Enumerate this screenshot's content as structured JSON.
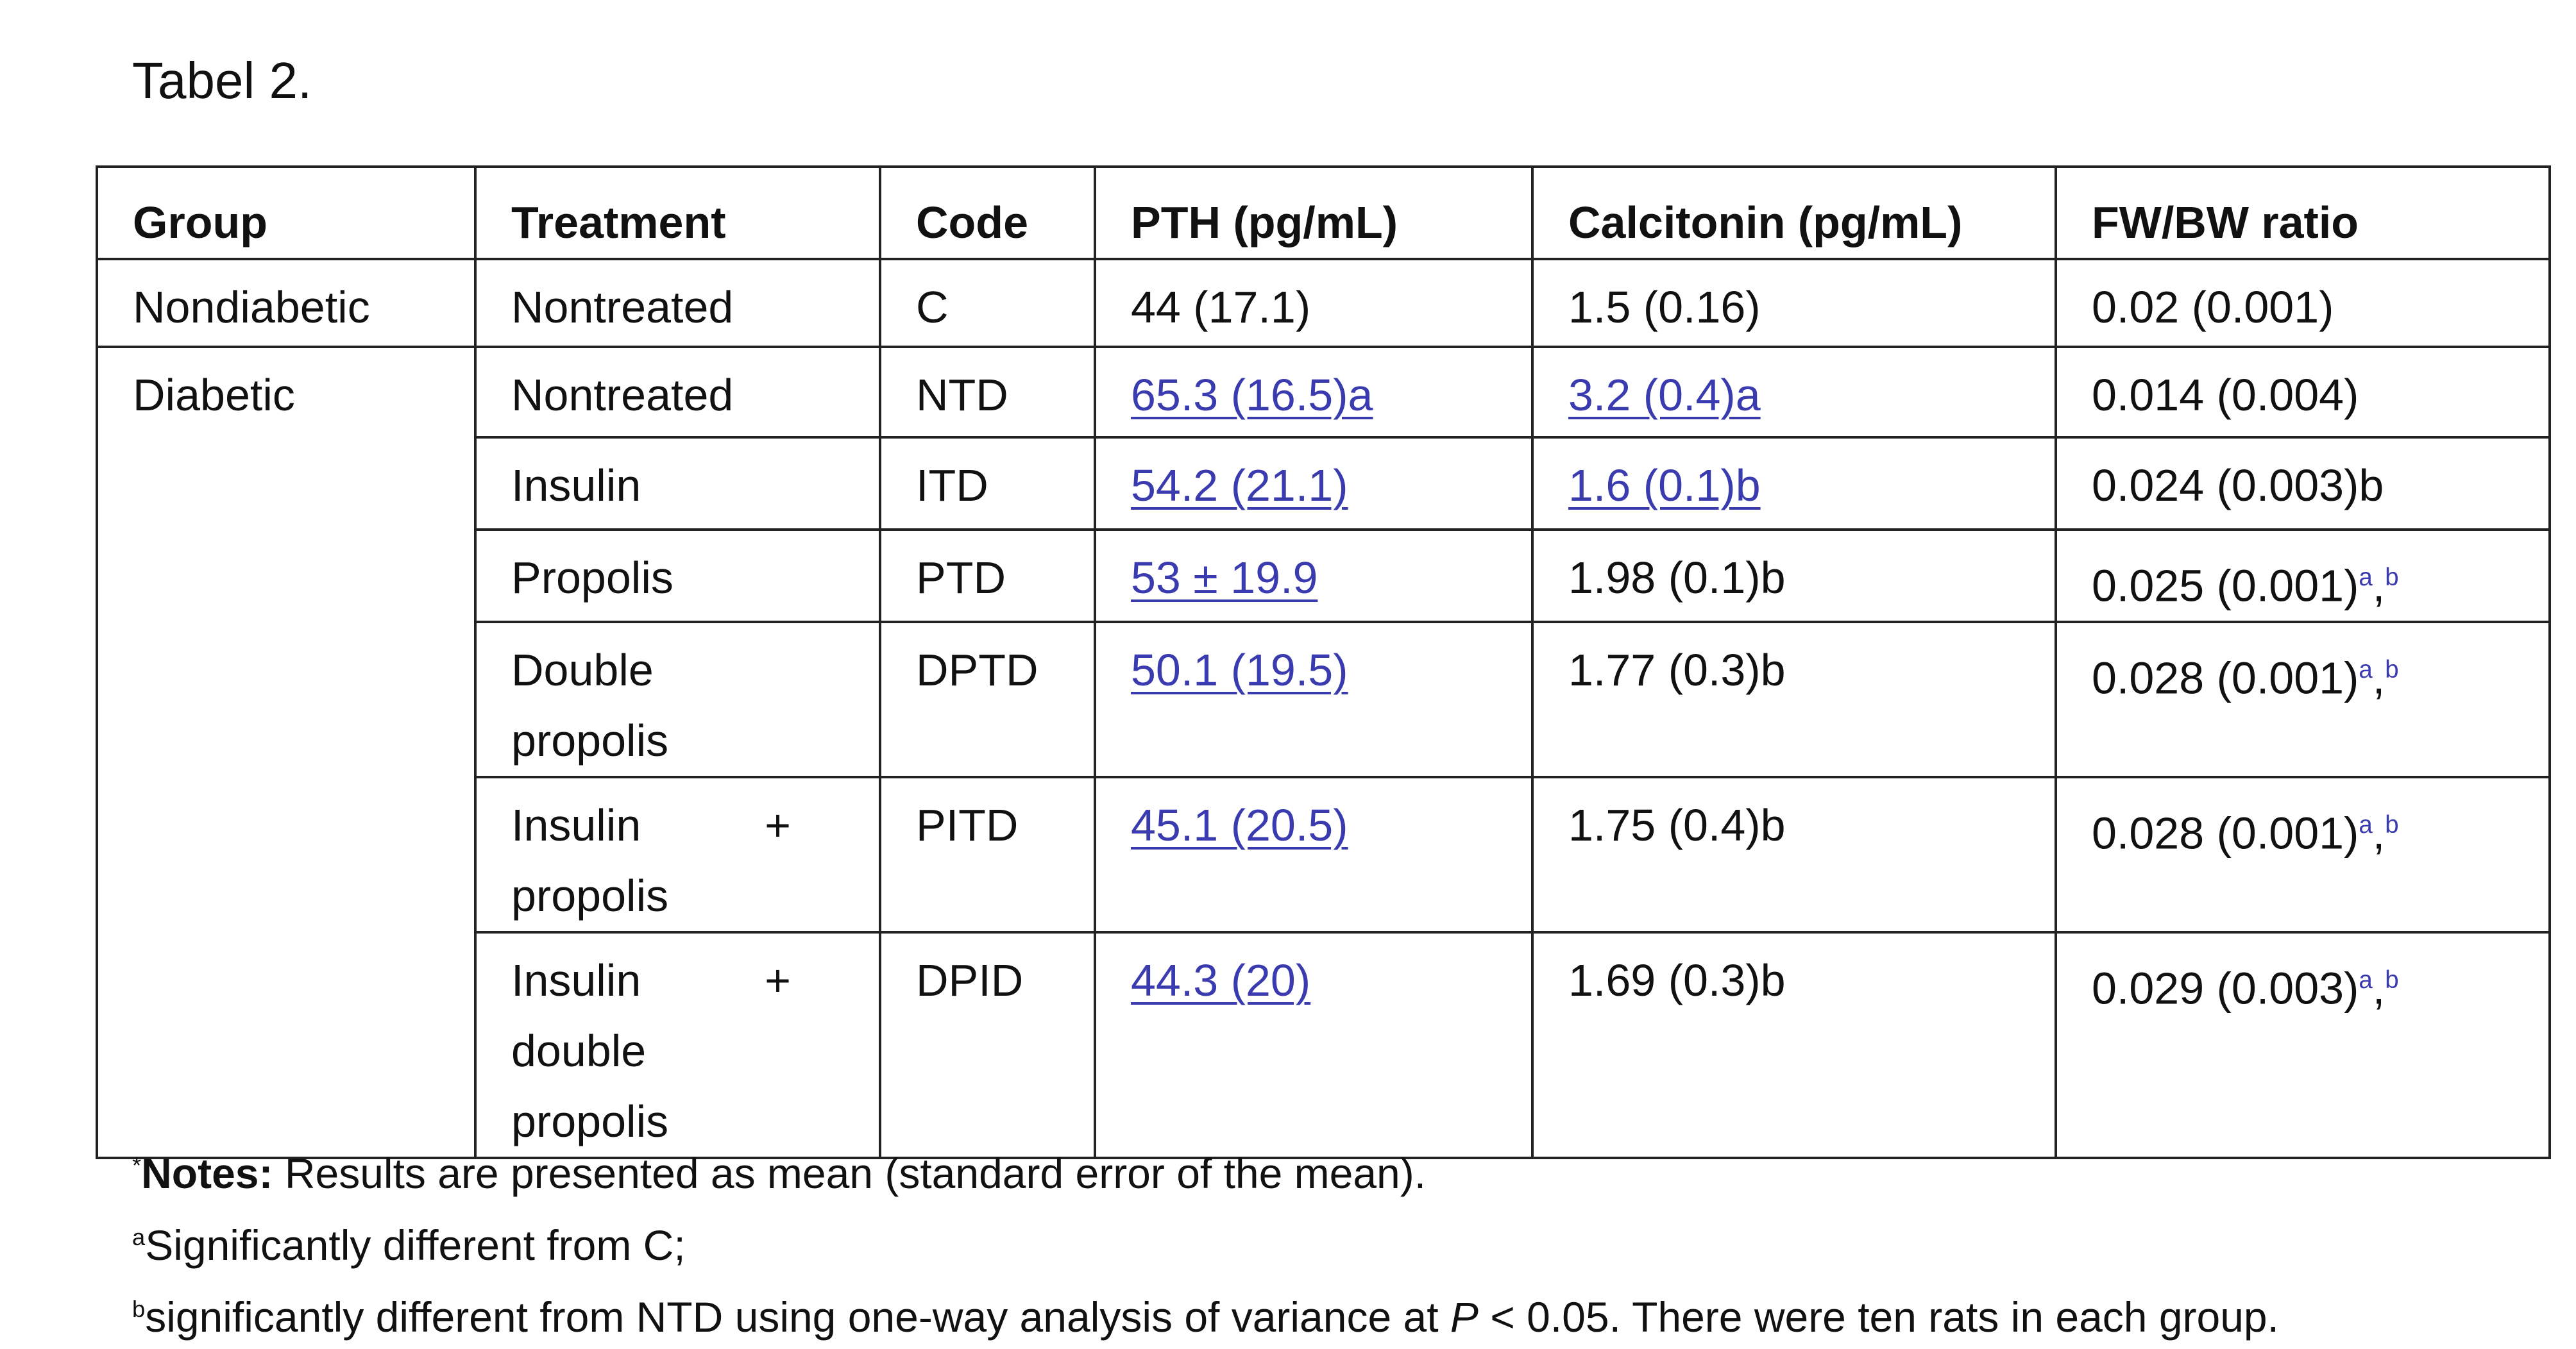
{
  "title": "Tabel 2.",
  "table": {
    "header": [
      "Group",
      "Treatment",
      "Code",
      "PTH (pg/mL)",
      "Calcitonin (pg/mL)",
      "FW/BW ratio"
    ],
    "rows": [
      [
        "Nondiabetic",
        "Nontreated",
        "C",
        "44 (17.1)",
        "1.5 (0.16)",
        "0.02 (0.001)"
      ],
      [
        "Diabetic",
        "Nontreated",
        "NTD",
        "65.3 (16.5)a",
        "3.2 (0.4)a",
        "0.014 (0.004)"
      ],
      [
        "Insulin",
        "ITD",
        "54.2 (21.1)",
        "1.6 (0.1)b",
        "0.024 (0.003)b"
      ],
      [
        "Propolis",
        "PTD",
        "53 ± 19.9",
        "1.98 (0.1)b",
        {
          "text": "0.025 (0.001)",
          "sup1": "a",
          "sep": ",",
          "sup2": "b"
        }
      ],
      [
        "Double propolis",
        "DPTD",
        "50.1 (19.5)",
        "1.77 (0.3)b",
        {
          "text": "0.028 (0.001)",
          "sup1": "a",
          "sep": ",",
          "sup2": "b"
        }
      ],
      [
        "Insulin + propolis",
        "PITD",
        "45.1 (20.5)",
        "1.75 (0.4)b",
        {
          "text": "0.028 (0.001)",
          "sup1": "a",
          "sep": ",",
          "sup2": "b"
        }
      ],
      [
        "Insulin + double propolis",
        "DPID",
        "44.3 (20)",
        "1.69 (0.3)b",
        {
          "text": "0.029 (0.003)",
          "sup1": "a",
          "sep": ",",
          "sup2": "b"
        }
      ]
    ]
  },
  "notes": [
    {
      "mark": "*",
      "label": "Notes:",
      "text": " Results are presented as mean (standard error of the mean)."
    },
    {
      "mark": "a",
      "text": "Significantly different from C;"
    },
    {
      "mark": "b",
      "text": "significantly different from NTD using one-way analysis of variance at ",
      "italic": "P",
      "text2": " < 0.05. There were ten rats in each group."
    }
  ]
}
